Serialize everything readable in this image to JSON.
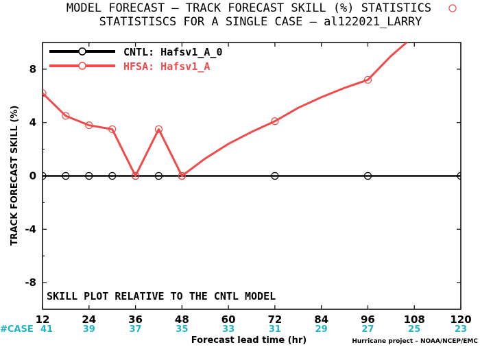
{
  "chart_data": {
    "type": "line",
    "title": "MODEL FORECAST – TRACK FORECAST SKILL (%) STATISTICS",
    "subtitle": "STATISTISCS FOR A SINGLE CASE – al122021_LARRY",
    "xlabel": "Forecast lead time (hr)",
    "ylabel": "TRACK FORECAST SKILL (%)",
    "xlim": [
      12,
      120
    ],
    "ylim": [
      -10,
      10
    ],
    "x_ticks": [
      12,
      24,
      36,
      48,
      60,
      72,
      84,
      96,
      108,
      120
    ],
    "y_ticks": [
      -8,
      -4,
      0,
      4,
      8
    ],
    "annotation": "SKILL PLOT RELATIVE TO THE CNTL MODEL",
    "case_label": "#CASE",
    "case_counts": [
      41,
      39,
      37,
      35,
      33,
      31,
      29,
      27,
      25,
      23
    ],
    "credit": "Hurricane project – NOAA/NCEP/EMC",
    "legend_position": "top-left",
    "series": [
      {
        "name": "CNTL: Hafsv1_A_0",
        "color": "#000000",
        "x": [
          12,
          18,
          24,
          30,
          36,
          42,
          48,
          54,
          60,
          66,
          72,
          78,
          84,
          90,
          96,
          102,
          108,
          114,
          120
        ],
        "y": [
          0,
          0,
          0,
          0,
          0,
          0,
          0,
          0,
          0,
          0,
          0,
          0,
          0,
          0,
          0,
          0,
          0,
          0,
          0
        ],
        "marker_x": [
          12,
          18,
          24,
          30,
          36,
          42,
          48,
          72,
          96,
          120
        ]
      },
      {
        "name": "HFSA: Hafsv1_A",
        "color": "#f04a4a",
        "x": [
          12,
          18,
          24,
          30,
          36,
          42,
          48,
          54,
          60,
          66,
          72,
          78,
          84,
          90,
          96,
          102,
          108
        ],
        "y": [
          6.2,
          4.5,
          3.8,
          3.5,
          0,
          3.5,
          0,
          1.3,
          2.4,
          3.3,
          4.1,
          5.1,
          5.9,
          6.6,
          7.2,
          9.0,
          10.5
        ],
        "marker_x": [
          12,
          18,
          24,
          30,
          36,
          42,
          48,
          72,
          96
        ]
      }
    ]
  }
}
